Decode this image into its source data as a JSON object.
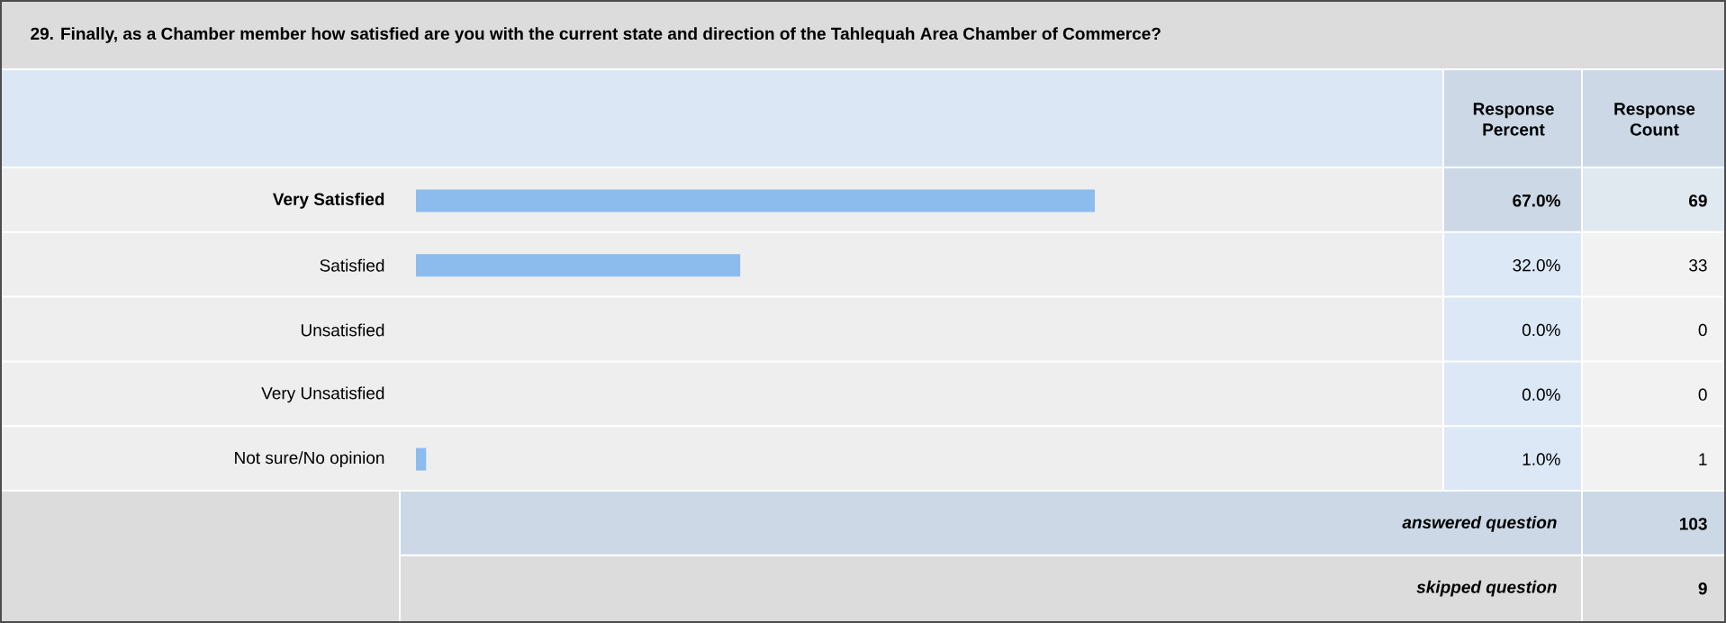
{
  "chart_data": {
    "type": "bar",
    "orientation": "horizontal",
    "title": "29. Finally, as a Chamber member how satisfied are you with the current state and direction of the Tahlequah Area Chamber of Commerce?",
    "categories": [
      "Very Satisfied",
      "Satisfied",
      "Unsatisfied",
      "Very Unsatisfied",
      "Not sure/No opinion"
    ],
    "values": [
      67,
      32,
      0,
      0,
      1
    ],
    "value_labels": [
      "67.0%",
      "32.0%",
      "0.0%",
      "0.0%",
      "1.0%"
    ],
    "color": "#8cbcee",
    "tick_labels": "y",
    "annotations": [
      "Response Percent",
      "Response Count",
      "69",
      "33",
      "0",
      "0",
      "1",
      "answered question",
      "103",
      "skipped question",
      "9"
    ]
  }
}
